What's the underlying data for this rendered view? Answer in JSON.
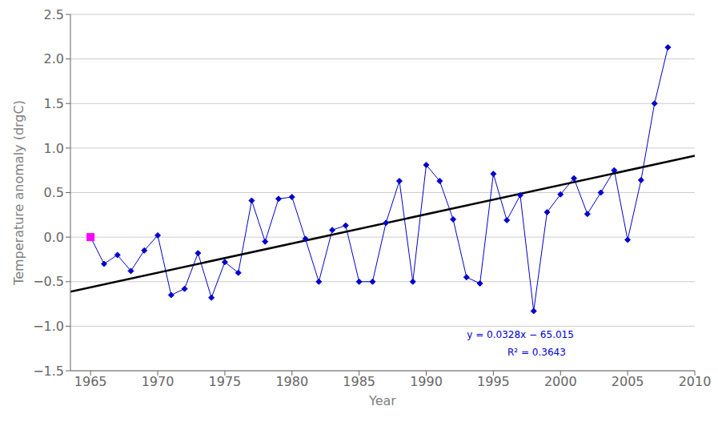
{
  "chart_data": {
    "type": "line",
    "xlabel": "Year",
    "ylabel": "Temperature anomaly (drgC)",
    "grid": "y",
    "xlim": [
      1963.5,
      2010
    ],
    "ylim": [
      -1.5,
      2.5
    ],
    "xticks": [
      1965,
      1970,
      1975,
      1980,
      1985,
      1990,
      1995,
      2000,
      2005,
      2010
    ],
    "yticks": [
      {
        "value": -1.5,
        "label": "−1.5"
      },
      {
        "value": -1.0,
        "label": "−1.0"
      },
      {
        "value": -0.5,
        "label": "−0.5"
      },
      {
        "value": 0.0,
        "label": "0.0"
      },
      0.5,
      {
        "value": 1.0,
        "label": "1.0"
      },
      1.5,
      {
        "value": 2.0,
        "label": "2.0"
      },
      2.5
    ],
    "series": [
      {
        "type": "line",
        "color": "#0000CD",
        "marker": "diamond",
        "x": [
          1965,
          1966,
          1967,
          1968,
          1969,
          1970,
          1971,
          1972,
          1973,
          1974,
          1975,
          1976,
          1977,
          1978,
          1979,
          1980,
          1981,
          1982,
          1983,
          1984,
          1985,
          1986,
          1987,
          1988,
          1989,
          1990,
          1991,
          1992,
          1993,
          1994,
          1995,
          1996,
          1997,
          1998,
          1999,
          2000,
          2001,
          2002,
          2003,
          2004,
          2005,
          2006,
          2007,
          2008
        ],
        "values": [
          0.0,
          -0.3,
          -0.2,
          -0.38,
          -0.15,
          0.02,
          -0.65,
          -0.58,
          -0.18,
          -0.68,
          -0.28,
          -0.4,
          0.41,
          -0.05,
          0.43,
          0.45,
          -0.02,
          -0.5,
          0.08,
          0.13,
          -0.5,
          -0.5,
          0.16,
          0.63,
          -0.5,
          0.81,
          0.63,
          0.2,
          -0.45,
          -0.52,
          0.71,
          0.19,
          0.47,
          -0.83,
          0.28,
          0.48,
          0.66,
          0.26,
          0.5,
          0.75,
          -0.03,
          0.64,
          1.5,
          2.13
        ]
      },
      {
        "type": "scatter",
        "color": "#FF00FF",
        "marker": "square",
        "x": [
          1965
        ],
        "values": [
          0.0
        ]
      },
      {
        "type": "line",
        "color": "#000000",
        "x": [
          1963.5,
          2010
        ],
        "values": [
          -0.6122,
          0.913
        ]
      }
    ],
    "annotations": [
      {
        "text": "y = 0.0328x − 65.015",
        "color": "#0000CD"
      },
      {
        "text": "R² = 0.3643",
        "color": "#0000CD"
      }
    ]
  }
}
